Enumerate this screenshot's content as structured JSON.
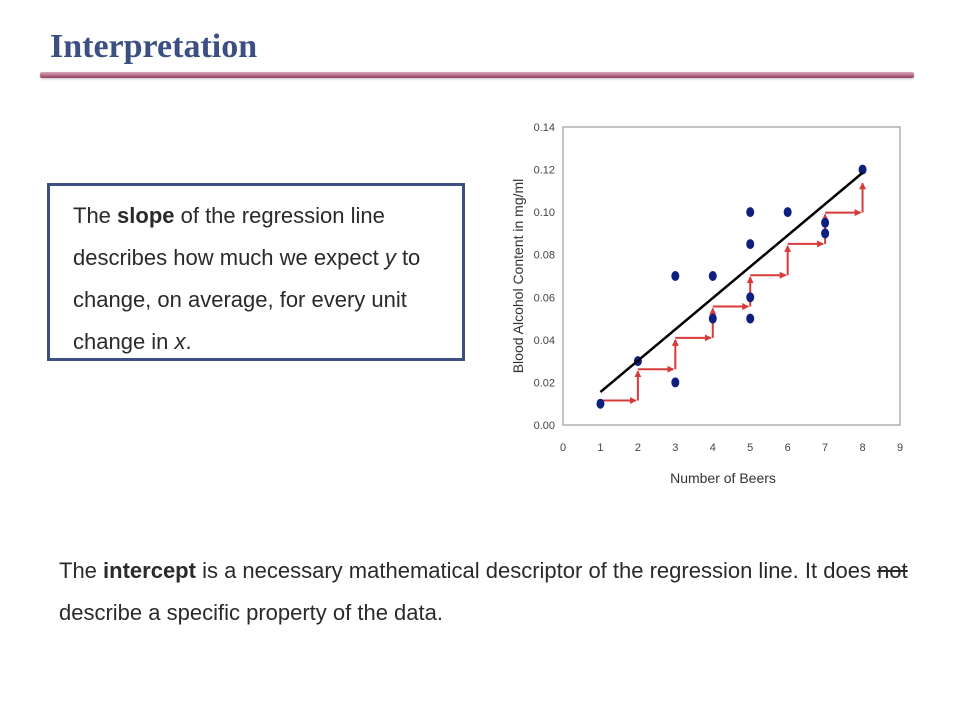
{
  "header": {
    "title": "Interpretation"
  },
  "slope_box": {
    "p1": "The ",
    "slope_word": "slope",
    "p2": " of the regression line describes how much we expect ",
    "y_var": "y",
    "p3": " to change, on average, for every unit change in ",
    "x_var": "x",
    "p4": "."
  },
  "intercept_text": {
    "p1": "The ",
    "intercept_word": "intercept",
    "p2": " is a necessary mathematical descriptor of the regression line. It does ",
    "not_word": "not",
    "p3": " describe a specific property of the data."
  },
  "colors": {
    "title": "#3b4f82",
    "points": "#0f1f80",
    "line": "#000000",
    "arrows": "#d83a3a",
    "accent_rule": "#9c3c64"
  },
  "chart_data": {
    "type": "scatter",
    "title": "",
    "xlabel": "Number of Beers",
    "ylabel": "Blood Alcohol Content in mg/ml",
    "xlim": [
      0,
      9
    ],
    "ylim": [
      0,
      0.14
    ],
    "x_ticks": [
      "0",
      "1",
      "2",
      "3",
      "4",
      "5",
      "6",
      "7",
      "8",
      "9"
    ],
    "y_ticks": [
      "0.00",
      "0.02",
      "0.04",
      "0.06",
      "0.08",
      "0.10",
      "0.12",
      "0.14"
    ],
    "points": [
      {
        "x": 1,
        "y": 0.01
      },
      {
        "x": 2,
        "y": 0.03
      },
      {
        "x": 3,
        "y": 0.02
      },
      {
        "x": 3,
        "y": 0.07
      },
      {
        "x": 4,
        "y": 0.05
      },
      {
        "x": 4,
        "y": 0.07
      },
      {
        "x": 5,
        "y": 0.05
      },
      {
        "x": 5,
        "y": 0.06
      },
      {
        "x": 5,
        "y": 0.085
      },
      {
        "x": 5,
        "y": 0.1
      },
      {
        "x": 6,
        "y": 0.1
      },
      {
        "x": 7,
        "y": 0.09
      },
      {
        "x": 7,
        "y": 0.095
      },
      {
        "x": 8,
        "y": 0.12
      }
    ],
    "regression_line": {
      "x": [
        1,
        8
      ],
      "y": [
        0.0155,
        0.1185
      ]
    },
    "grid": false,
    "legend": "none"
  }
}
